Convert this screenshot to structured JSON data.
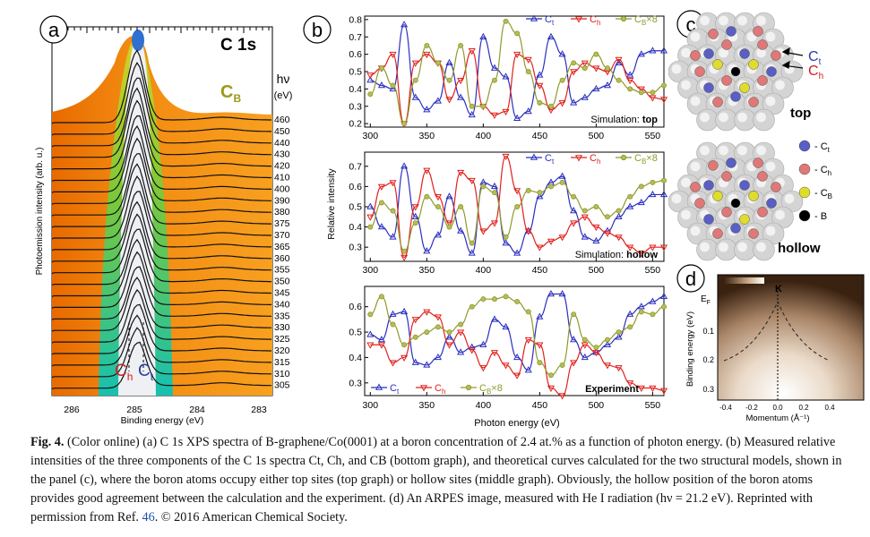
{
  "figure": {
    "panel_a": {
      "letter": "a",
      "title": "C 1s",
      "hv_symbol": "hν",
      "hv_unit": "(eV)",
      "cb_label_main": "C",
      "cb_label_sub": "B",
      "ch_main": "C",
      "ch_sub": "h",
      "ct_main": "C",
      "ct_sub": "t",
      "ylabel": "Photoemission intensity (arb. u.)",
      "xlabel": "Binding energy (eV)",
      "xticks": [
        "286",
        "285",
        "284",
        "283"
      ],
      "energies": [
        "460",
        "450",
        "440",
        "430",
        "420",
        "410",
        "400",
        "390",
        "380",
        "375",
        "370",
        "365",
        "360",
        "355",
        "350",
        "345",
        "340",
        "335",
        "330",
        "325",
        "320",
        "315",
        "310",
        "305"
      ]
    },
    "panel_b": {
      "letter": "b",
      "ylabel": "Relative intensity",
      "xlabel": "Photon energy (eV)",
      "xticks": [
        "300",
        "350",
        "400",
        "450",
        "500",
        "550"
      ],
      "legend": {
        "ct_main": "C",
        "ct_sub": "t",
        "ch_main": "C",
        "ch_sub": "h",
        "cb_main": "C",
        "cb_sub": "B",
        "cb_mult": "×8"
      },
      "top_label_pre": "Simulation: ",
      "top_label_bold": "top",
      "hollow_label_pre": "Simulation: ",
      "hollow_label_bold": "hollow",
      "exp_label": "Experiment",
      "top_yticks": [
        "0.2",
        "0.3",
        "0.4",
        "0.5",
        "0.6",
        "0.7",
        "0.8"
      ],
      "hollow_yticks": [
        "0.3",
        "0.4",
        "0.5",
        "0.6",
        "0.7"
      ],
      "exp_yticks": [
        "0.3",
        "0.4",
        "0.5",
        "0.6"
      ]
    },
    "panel_c": {
      "letter": "c",
      "ct_main": "C",
      "ct_sub": "t",
      "ch_main": "C",
      "ch_sub": "h",
      "top_label": "top",
      "hollow_label": "hollow",
      "legend": [
        {
          "main": "- C",
          "sub": "t",
          "color": "#5a5fc4"
        },
        {
          "main": "- C",
          "sub": "h",
          "color": "#e07878"
        },
        {
          "main": "- C",
          "sub": "B",
          "color": "#e0dc2c"
        },
        {
          "main": "- B",
          "sub": "",
          "color": "#000000"
        }
      ]
    },
    "panel_d": {
      "letter": "d",
      "ef_main": "E",
      "ef_sub": "F",
      "k_label": "K",
      "ylabel": "Binding energy (eV)",
      "xlabel": "Momentum (Å⁻¹)",
      "yticks": [
        "0.1",
        "0.2",
        "0.3"
      ],
      "xticks": [
        "-0.4",
        "-0.2",
        "0.0",
        "0.2",
        "0.4"
      ]
    }
  },
  "chart_data": [
    {
      "type": "line",
      "title": "Simulation: top",
      "xlabel": "Photon energy (eV)",
      "ylabel": "Relative intensity",
      "xlim": [
        295,
        560
      ],
      "ylim": [
        0.18,
        0.82
      ],
      "x": [
        300,
        310,
        320,
        330,
        340,
        350,
        360,
        370,
        380,
        390,
        400,
        410,
        420,
        430,
        440,
        450,
        460,
        470,
        480,
        490,
        500,
        510,
        520,
        530,
        540,
        550,
        560
      ],
      "series": [
        {
          "name": "Ct",
          "color": "#2b2fbf",
          "values": [
            0.45,
            0.42,
            0.4,
            0.77,
            0.35,
            0.28,
            0.33,
            0.55,
            0.35,
            0.25,
            0.7,
            0.52,
            0.47,
            0.23,
            0.27,
            0.48,
            0.7,
            0.6,
            0.32,
            0.35,
            0.4,
            0.42,
            0.55,
            0.48,
            0.6,
            0.62,
            0.62
          ]
        },
        {
          "name": "Ch",
          "color": "#e0201c",
          "values": [
            0.48,
            0.52,
            0.6,
            0.2,
            0.55,
            0.6,
            0.55,
            0.34,
            0.45,
            0.62,
            0.3,
            0.25,
            0.27,
            0.6,
            0.57,
            0.42,
            0.28,
            0.32,
            0.5,
            0.55,
            0.52,
            0.5,
            0.57,
            0.45,
            0.4,
            0.35,
            0.34
          ]
        },
        {
          "name": "CB×8",
          "color": "#8f9a2a",
          "values": [
            0.37,
            0.52,
            0.42,
            0.2,
            0.45,
            0.65,
            0.55,
            0.45,
            0.65,
            0.3,
            0.3,
            0.45,
            0.79,
            0.72,
            0.5,
            0.32,
            0.3,
            0.45,
            0.55,
            0.52,
            0.6,
            0.52,
            0.45,
            0.4,
            0.38,
            0.38,
            0.42
          ]
        }
      ]
    },
    {
      "type": "line",
      "title": "Simulation: hollow",
      "xlabel": "Photon energy (eV)",
      "ylabel": "Relative intensity",
      "xlim": [
        295,
        560
      ],
      "ylim": [
        0.23,
        0.77
      ],
      "x": [
        300,
        310,
        320,
        330,
        340,
        350,
        360,
        370,
        380,
        390,
        400,
        410,
        420,
        430,
        440,
        450,
        460,
        470,
        480,
        490,
        500,
        510,
        520,
        530,
        540,
        550,
        560
      ],
      "series": [
        {
          "name": "Ct",
          "color": "#2b2fbf",
          "values": [
            0.5,
            0.4,
            0.35,
            0.7,
            0.45,
            0.28,
            0.36,
            0.55,
            0.38,
            0.27,
            0.62,
            0.6,
            0.32,
            0.27,
            0.38,
            0.55,
            0.62,
            0.65,
            0.48,
            0.35,
            0.33,
            0.38,
            0.45,
            0.5,
            0.52,
            0.56,
            0.56
          ]
        },
        {
          "name": "Ch",
          "color": "#e0201c",
          "values": [
            0.45,
            0.6,
            0.62,
            0.25,
            0.5,
            0.68,
            0.55,
            0.42,
            0.67,
            0.63,
            0.38,
            0.42,
            0.75,
            0.58,
            0.38,
            0.3,
            0.33,
            0.35,
            0.42,
            0.45,
            0.4,
            0.37,
            0.35,
            0.3,
            0.27,
            0.3,
            0.3
          ]
        },
        {
          "name": "CB×8",
          "color": "#8f9a2a",
          "values": [
            0.4,
            0.52,
            0.48,
            0.28,
            0.42,
            0.55,
            0.5,
            0.4,
            0.5,
            0.32,
            0.6,
            0.57,
            0.35,
            0.5,
            0.58,
            0.57,
            0.6,
            0.62,
            0.55,
            0.48,
            0.5,
            0.45,
            0.48,
            0.55,
            0.6,
            0.62,
            0.63
          ]
        }
      ]
    },
    {
      "type": "line",
      "title": "Experiment",
      "xlabel": "Photon energy (eV)",
      "ylabel": "Relative intensity",
      "xlim": [
        295,
        560
      ],
      "ylim": [
        0.25,
        0.68
      ],
      "x": [
        300,
        310,
        320,
        330,
        340,
        350,
        360,
        370,
        380,
        390,
        400,
        410,
        420,
        430,
        440,
        450,
        460,
        470,
        480,
        490,
        500,
        510,
        520,
        530,
        540,
        550,
        560
      ],
      "series": [
        {
          "name": "Ct",
          "color": "#2b2fbf",
          "values": [
            0.49,
            0.47,
            0.57,
            0.58,
            0.38,
            0.37,
            0.4,
            0.48,
            0.42,
            0.44,
            0.45,
            0.55,
            0.52,
            0.4,
            0.35,
            0.56,
            0.65,
            0.65,
            0.47,
            0.4,
            0.42,
            0.45,
            0.48,
            0.57,
            0.6,
            0.62,
            0.64
          ]
        },
        {
          "name": "Ch",
          "color": "#e0201c",
          "values": [
            0.45,
            0.45,
            0.38,
            0.4,
            0.55,
            0.58,
            0.56,
            0.45,
            0.5,
            0.43,
            0.36,
            0.42,
            0.37,
            0.33,
            0.47,
            0.45,
            0.28,
            0.25,
            0.38,
            0.45,
            0.42,
            0.37,
            0.36,
            0.3,
            0.28,
            0.28,
            0.27
          ]
        },
        {
          "name": "CB×8",
          "color": "#8f9a2a",
          "values": [
            0.57,
            0.64,
            0.53,
            0.45,
            0.48,
            0.5,
            0.52,
            0.5,
            0.53,
            0.6,
            0.63,
            0.63,
            0.64,
            0.62,
            0.58,
            0.38,
            0.33,
            0.37,
            0.57,
            0.47,
            0.44,
            0.47,
            0.5,
            0.52,
            0.58,
            0.57,
            0.6
          ]
        }
      ]
    }
  ],
  "caption": {
    "lead": "Fig. 4.",
    "text": "(Color online) (a) C 1s XPS spectra of B-graphene/Co(0001) at a boron concentration of 2.4 at.% as a function of photon energy. (b) Measured relative intensities of the three components of the C 1s spectra Ct, Ch, and CB (bottom graph), and theoretical curves calculated for the two structural models, shown in the panel (c), where the boron atoms occupy either top sites (top graph) or hollow sites (middle graph). Obviously, the hollow position of the boron atoms provides good agreement between the calculation and the experiment. (d) An ARPES image, measured with He I radiation (hν = 21.2 eV). Reprinted with permission from Ref.",
    "ref": "46",
    "tail": ". © 2016 American Chemical Society."
  }
}
